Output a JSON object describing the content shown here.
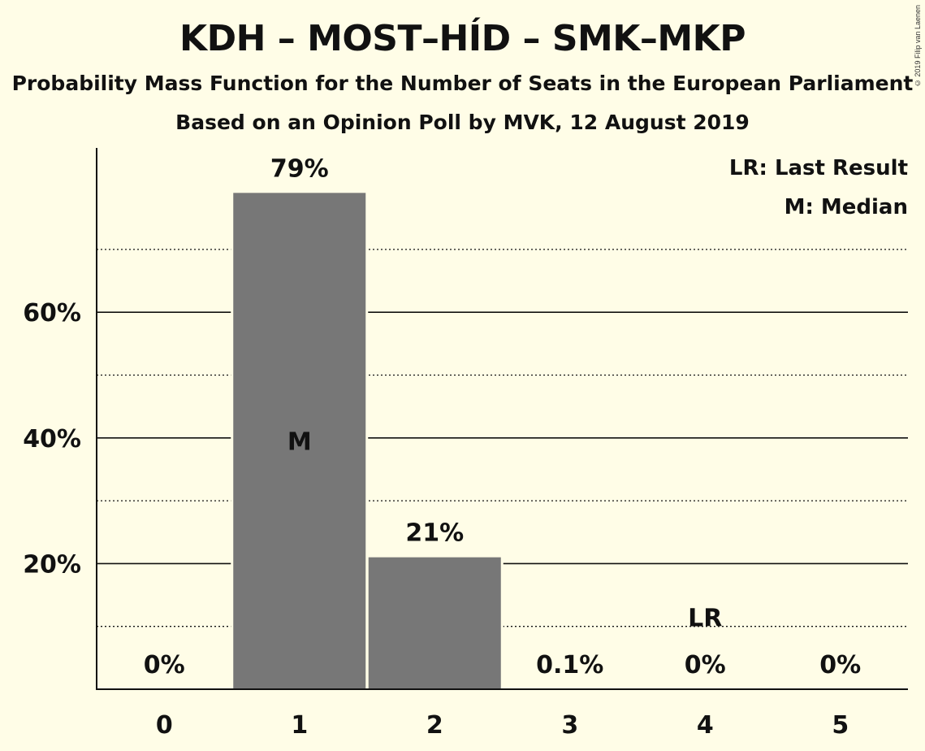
{
  "chart_data": {
    "type": "bar",
    "title": "KDH – MOST–HÍD – SMK–MKP",
    "subtitle": "Probability Mass Function for the Number of Seats in the European Parliament",
    "source_line": "Based on an Opinion Poll by MVK, 12 August 2019",
    "copyright": "© 2019 Filip van Laenen",
    "categories": [
      "0",
      "1",
      "2",
      "3",
      "4",
      "5"
    ],
    "values": [
      0,
      79,
      21,
      0.1,
      0,
      0
    ],
    "data_labels": [
      "0%",
      "79%",
      "21%",
      "0.1%",
      "0%",
      "0%"
    ],
    "ylim": [
      0,
      86
    ],
    "y_ticks": [
      {
        "value": 20,
        "label": "20%"
      },
      {
        "value": 40,
        "label": "40%"
      },
      {
        "value": 60,
        "label": "60%"
      }
    ],
    "minor_grid": [
      10,
      30,
      50,
      70
    ],
    "median_category": "1",
    "median_marker": "M",
    "last_result_category": "4",
    "last_result_marker": "LR",
    "legend": {
      "placement": "top-right",
      "entries": [
        "LR: Last Result",
        "M: Median"
      ]
    },
    "colors": {
      "background": "#FFFDE7",
      "bar": "#777777",
      "axis": "#111111",
      "median_text": "#FFFDE7"
    }
  }
}
